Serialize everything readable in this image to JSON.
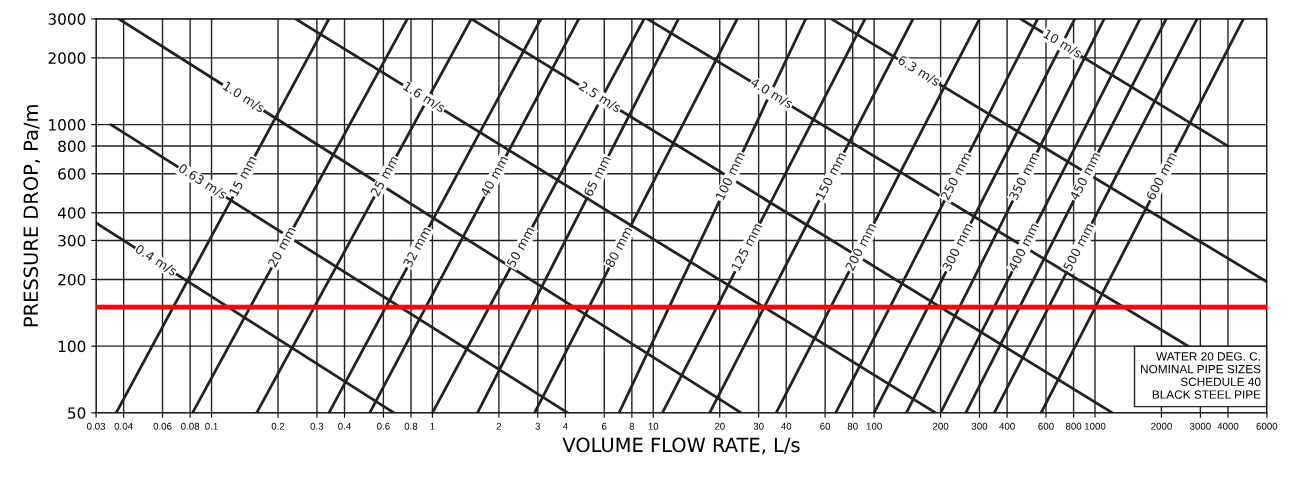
{
  "chart_data": {
    "type": "line",
    "log": "xy",
    "grid": true,
    "legend": false,
    "marker": "none",
    "line_style": "solid",
    "xlabel": "VOLUME FLOW RATE, L/s",
    "ylabel": "PRESSURE DROP, Pa/m",
    "xlim": [
      0.03,
      6000
    ],
    "ylim": [
      50,
      3000
    ],
    "xticks": [
      0.03,
      0.04,
      0.06,
      0.08,
      0.1,
      0.2,
      0.3,
      0.4,
      0.6,
      0.8,
      1,
      2,
      3,
      4,
      6,
      8,
      10,
      20,
      30,
      40,
      60,
      80,
      100,
      200,
      300,
      400,
      600,
      800,
      1000,
      2000,
      3000,
      4000,
      6000
    ],
    "yticks": [
      50,
      100,
      200,
      300,
      400,
      600,
      800,
      1000,
      2000,
      3000
    ],
    "ref_lines": [
      {
        "axis": "y",
        "value": 150,
        "color": "#ff0000"
      }
    ],
    "annotations": [
      "WATER 20 DEG. C.\nNOMINAL PIPE SIZES\nSCHEDULE 40\nBLACK STEEL PIPE"
    ],
    "series": [
      {
        "name": "15 mm",
        "color": "#222222",
        "x": [
          0.037,
          0.34
        ],
        "values": [
          50,
          3000
        ]
      },
      {
        "name": "20 mm",
        "color": "#222222",
        "x": [
          0.082,
          0.77
        ],
        "values": [
          50,
          3000
        ]
      },
      {
        "name": "25 mm",
        "color": "#222222",
        "x": [
          0.16,
          1.5
        ],
        "values": [
          50,
          3000
        ]
      },
      {
        "name": "32 mm",
        "color": "#222222",
        "x": [
          0.34,
          3.1
        ],
        "values": [
          50,
          3000
        ]
      },
      {
        "name": "40 mm",
        "color": "#222222",
        "x": [
          0.52,
          4.6
        ],
        "values": [
          50,
          3000
        ]
      },
      {
        "name": "50 mm",
        "color": "#222222",
        "x": [
          1.0,
          9.1
        ],
        "values": [
          50,
          3000
        ]
      },
      {
        "name": "65 mm",
        "color": "#222222",
        "x": [
          1.6,
          13
        ],
        "values": [
          50,
          3000
        ]
      },
      {
        "name": "80 mm",
        "color": "#222222",
        "x": [
          2.9,
          24
        ],
        "values": [
          50,
          3000
        ]
      },
      {
        "name": "100 mm",
        "color": "#222222",
        "x": [
          7.0,
          49
        ],
        "values": [
          50,
          3000
        ]
      },
      {
        "name": "125 mm",
        "color": "#222222",
        "x": [
          11,
          91
        ],
        "values": [
          50,
          3000
        ]
      },
      {
        "name": "150 mm",
        "color": "#222222",
        "x": [
          18,
          150
        ],
        "values": [
          50,
          3000
        ]
      },
      {
        "name": "200 mm",
        "color": "#222222",
        "x": [
          36,
          300
        ],
        "values": [
          50,
          3000
        ]
      },
      {
        "name": "250 mm",
        "color": "#222222",
        "x": [
          67,
          550
        ],
        "values": [
          50,
          3000
        ]
      },
      {
        "name": "300 mm",
        "color": "#222222",
        "x": [
          100,
          810
        ],
        "values": [
          50,
          3000
        ]
      },
      {
        "name": "350 mm",
        "color": "#222222",
        "x": [
          140,
          1100
        ],
        "values": [
          50,
          3000
        ]
      },
      {
        "name": "400 mm",
        "color": "#222222",
        "x": [
          200,
          1600
        ],
        "values": [
          50,
          3000
        ]
      },
      {
        "name": "450 mm",
        "color": "#222222",
        "x": [
          260,
          2100
        ],
        "values": [
          50,
          3000
        ]
      },
      {
        "name": "500 mm",
        "color": "#222222",
        "x": [
          350,
          2900
        ],
        "values": [
          50,
          3000
        ]
      },
      {
        "name": "600 mm",
        "color": "#222222",
        "x": [
          570,
          4700
        ],
        "values": [
          50,
          3000
        ]
      },
      {
        "name": "0.4 m/s",
        "color": "#222222",
        "x": [
          0.03,
          0.67
        ],
        "values": [
          360,
          50
        ]
      },
      {
        "name": "0.63 m/s",
        "color": "#222222",
        "x": [
          0.035,
          4.1
        ],
        "values": [
          1000,
          50
        ]
      },
      {
        "name": "1.0 m/s",
        "color": "#222222",
        "x": [
          0.038,
          25
        ],
        "values": [
          3000,
          50
        ]
      },
      {
        "name": "1.6 m/s",
        "color": "#222222",
        "x": [
          0.24,
          190
        ],
        "values": [
          3000,
          50
        ]
      },
      {
        "name": "2.5 m/s",
        "color": "#222222",
        "x": [
          1.5,
          1200
        ],
        "values": [
          3000,
          50
        ]
      },
      {
        "name": "4.0 m/s",
        "color": "#222222",
        "x": [
          9.4,
          6000
        ],
        "values": [
          3000,
          61
        ]
      },
      {
        "name": "6.3 m/s",
        "color": "#222222",
        "x": [
          64,
          6000
        ],
        "values": [
          3000,
          195
        ]
      },
      {
        "name": "10 m/s",
        "color": "#222222",
        "x": [
          460,
          4000
        ],
        "values": [
          3000,
          800
        ]
      }
    ]
  }
}
